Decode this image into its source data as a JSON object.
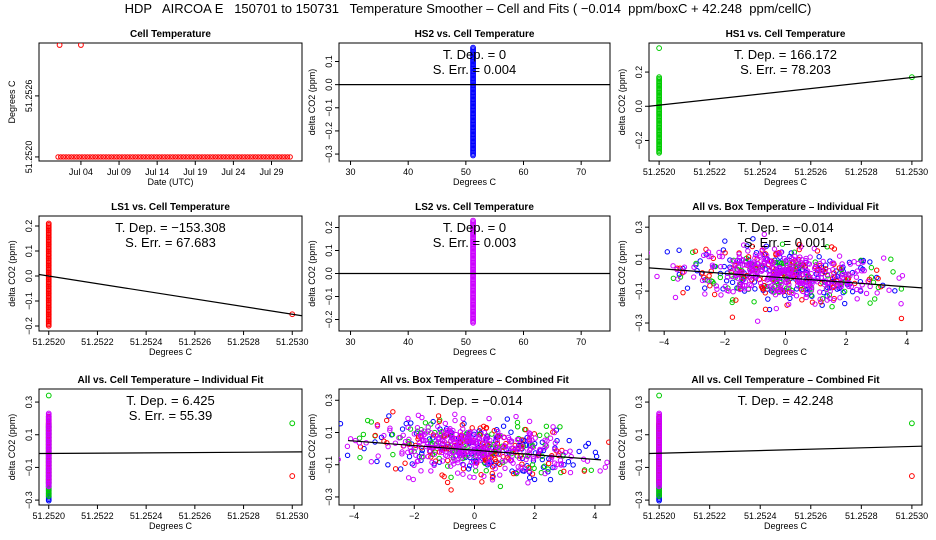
{
  "main_title": "HDP   AIRCOA E   150701 to 150731   Temperature Smoother – Cell and Fits ( −0.014  ppm/boxC + 42.248  ppm/cellC)",
  "chart_data": [
    {
      "type": "scatter",
      "title": "Cell Temperature",
      "xlabel": "Date (UTC)",
      "ylabel": "Degrees C",
      "xlim": [
        -2.5,
        32
      ],
      "ylim": [
        51.25196,
        51.25312
      ],
      "xticks": [
        {
          "v": 3,
          "label": "Jul 04"
        },
        {
          "v": 8,
          "label": "Jul 09"
        },
        {
          "v": 13,
          "label": "Jul 14"
        },
        {
          "v": 18,
          "label": "Jul 19"
        },
        {
          "v": 23,
          "label": "Jul 24"
        },
        {
          "v": 28,
          "label": "Jul 29"
        }
      ],
      "yticks": [
        {
          "v": 51.252,
          "label": "51.2520"
        },
        {
          "v": 51.2526,
          "label": "51.2526"
        }
      ],
      "series": [
        {
          "name": "cell",
          "color": "#ff0000",
          "markers": "circle",
          "x_start": 0,
          "x_end": 30.5,
          "x_step": 0.35,
          "y_base": 51.252,
          "extra_points": [
            [
              0.2,
              51.2531
            ],
            [
              3,
              51.2531
            ]
          ]
        }
      ]
    },
    {
      "type": "scatter",
      "title": "HS2 vs. Cell Temperature",
      "xlabel": "Degrees C",
      "ylabel": "delta CO2 (ppm)",
      "xlim": [
        28,
        75
      ],
      "ylim": [
        -0.33,
        0.18
      ],
      "xticks": [
        {
          "v": 30,
          "label": "30"
        },
        {
          "v": 40,
          "label": "40"
        },
        {
          "v": 50,
          "label": "50"
        },
        {
          "v": 60,
          "label": "60"
        },
        {
          "v": 70,
          "label": "70"
        }
      ],
      "yticks": [
        {
          "v": -0.3,
          "label": "−0.3"
        },
        {
          "v": -0.2,
          "label": "−0.2"
        },
        {
          "v": -0.1,
          "label": "−0.1"
        },
        {
          "v": 0,
          "label": "0.0"
        },
        {
          "v": 0.1,
          "label": "0.1"
        }
      ],
      "fit": {
        "x0": 28,
        "y0": 0,
        "x1": 75,
        "y1": 0
      },
      "annotations": [
        "T. Dep. = 0",
        "S. Err. = 0.004"
      ],
      "series": [
        {
          "name": "HS2",
          "color": "#0000ff",
          "markers": "column",
          "x": 51.25,
          "y_min": -0.31,
          "y_max": 0.16
        }
      ]
    },
    {
      "type": "scatter",
      "title": "HS1 vs. Cell Temperature",
      "xlabel": "Degrees C",
      "ylabel": "delta CO2 (ppm)",
      "xlim": [
        51.25196,
        51.25304
      ],
      "ylim": [
        -0.32,
        0.37
      ],
      "xticks": [
        {
          "v": 51.252,
          "label": "51.2520"
        },
        {
          "v": 51.2522,
          "label": "51.2522"
        },
        {
          "v": 51.2524,
          "label": "51.2524"
        },
        {
          "v": 51.2526,
          "label": "51.2526"
        },
        {
          "v": 51.2528,
          "label": "51.2528"
        },
        {
          "v": 51.253,
          "label": "51.2530"
        }
      ],
      "yticks": [
        {
          "v": -0.2,
          "label": "−0.2"
        },
        {
          "v": 0,
          "label": "0.0"
        },
        {
          "v": 0.2,
          "label": "0.2"
        }
      ],
      "fit": {
        "x0": 51.25196,
        "y0": 0.0,
        "x1": 51.25304,
        "y1": 0.175
      },
      "annotations": [
        "T. Dep. = 166.172",
        "S. Err. = 78.203"
      ],
      "series": [
        {
          "name": "HS1",
          "color": "#00cc00",
          "markers": "column",
          "x": 51.252,
          "y_min": -0.28,
          "y_max": 0.17,
          "extra_points": [
            [
              51.252,
              0.34
            ],
            [
              51.253,
              0.17
            ]
          ]
        }
      ]
    },
    {
      "type": "scatter",
      "title": "LS1 vs. Cell Temperature",
      "xlabel": "Degrees C",
      "ylabel": "delta CO2 (ppm)",
      "xlim": [
        51.25196,
        51.25304
      ],
      "ylim": [
        -0.22,
        0.24
      ],
      "xticks": [
        {
          "v": 51.252,
          "label": "51.2520"
        },
        {
          "v": 51.2522,
          "label": "51.2522"
        },
        {
          "v": 51.2524,
          "label": "51.2524"
        },
        {
          "v": 51.2526,
          "label": "51.2526"
        },
        {
          "v": 51.2528,
          "label": "51.2528"
        },
        {
          "v": 51.253,
          "label": "51.2530"
        }
      ],
      "yticks": [
        {
          "v": -0.2,
          "label": "−0.2"
        },
        {
          "v": -0.1,
          "label": "−0.1"
        },
        {
          "v": 0,
          "label": "0.0"
        },
        {
          "v": 0.1,
          "label": "0.1"
        },
        {
          "v": 0.2,
          "label": "0.2"
        }
      ],
      "fit": {
        "x0": 51.25196,
        "y0": 0.006,
        "x1": 51.25304,
        "y1": -0.159
      },
      "annotations": [
        "T. Dep. = −153.308",
        "S. Err. = 67.683"
      ],
      "series": [
        {
          "name": "LS1",
          "color": "#ff0000",
          "markers": "column",
          "x": 51.252,
          "y_min": -0.2,
          "y_max": 0.21,
          "extra_points": [
            [
              51.253,
              -0.153
            ]
          ]
        }
      ]
    },
    {
      "type": "scatter",
      "title": "LS2 vs. Cell Temperature",
      "xlabel": "Degrees C",
      "ylabel": "delta CO2 (ppm)",
      "xlim": [
        28,
        75
      ],
      "ylim": [
        -0.25,
        0.25
      ],
      "xticks": [
        {
          "v": 30,
          "label": "30"
        },
        {
          "v": 40,
          "label": "40"
        },
        {
          "v": 50,
          "label": "50"
        },
        {
          "v": 60,
          "label": "60"
        },
        {
          "v": 70,
          "label": "70"
        }
      ],
      "yticks": [
        {
          "v": -0.2,
          "label": "−0.2"
        },
        {
          "v": -0.1,
          "label": "−0.1"
        },
        {
          "v": 0,
          "label": "0.0"
        },
        {
          "v": 0.1,
          "label": "0.1"
        },
        {
          "v": 0.2,
          "label": "0.2"
        }
      ],
      "fit": {
        "x0": 28,
        "y0": 0,
        "x1": 75,
        "y1": 0
      },
      "annotations": [
        "T. Dep. = 0",
        "S. Err. = 0.003"
      ],
      "series": [
        {
          "name": "LS2",
          "color": "#cc00ff",
          "markers": "column",
          "x": 51.25,
          "y_min": -0.22,
          "y_max": 0.23
        }
      ]
    },
    {
      "type": "scatter",
      "title": "All vs. Box Temperature – Individual Fit",
      "xlabel": "Degrees C",
      "ylabel": "delta CO2 (ppm)",
      "xlim": [
        -4.5,
        4.5
      ],
      "ylim": [
        -0.35,
        0.37
      ],
      "xticks": [
        {
          "v": -4,
          "label": "−4"
        },
        {
          "v": -2,
          "label": "−2"
        },
        {
          "v": 0,
          "label": "0"
        },
        {
          "v": 2,
          "label": "2"
        },
        {
          "v": 4,
          "label": "4"
        }
      ],
      "yticks": [
        {
          "v": -0.3,
          "label": "−0.3"
        },
        {
          "v": -0.1,
          "label": "−0.1"
        },
        {
          "v": 0.1,
          "label": "0.1"
        },
        {
          "v": 0.3,
          "label": "0.3"
        }
      ],
      "fit": {
        "x0": -4.5,
        "y0": 0.045,
        "x1": 4.5,
        "y1": -0.08
      },
      "annotations": [
        "T. Dep. = −0.014",
        "S. Err. = 0.001"
      ],
      "series": [
        {
          "name": "HS2",
          "color": "#0000ff",
          "markers": "cloud",
          "n": 140,
          "x_spread": 1.7,
          "y_spread": 0.085,
          "slope": -0.014
        },
        {
          "name": "HS1",
          "color": "#00cc00",
          "markers": "cloud",
          "n": 110,
          "x_spread": 1.7,
          "y_spread": 0.085,
          "slope": -0.014
        },
        {
          "name": "LS1",
          "color": "#ff0000",
          "markers": "cloud",
          "n": 110,
          "x_spread": 1.7,
          "y_spread": 0.085,
          "slope": -0.014
        },
        {
          "name": "LS2",
          "color": "#cc00ff",
          "markers": "cloud",
          "n": 320,
          "x_spread": 1.6,
          "y_spread": 0.075,
          "slope": -0.014
        }
      ]
    },
    {
      "type": "scatter",
      "title": "All vs. Cell Temperature – Individual Fit",
      "xlabel": "Degrees C",
      "ylabel": "delta CO2 (ppm)",
      "xlim": [
        51.25196,
        51.25304
      ],
      "ylim": [
        -0.33,
        0.38
      ],
      "xticks": [
        {
          "v": 51.252,
          "label": "51.2520"
        },
        {
          "v": 51.2522,
          "label": "51.2522"
        },
        {
          "v": 51.2524,
          "label": "51.2524"
        },
        {
          "v": 51.2526,
          "label": "51.2526"
        },
        {
          "v": 51.2528,
          "label": "51.2528"
        },
        {
          "v": 51.253,
          "label": "51.2530"
        }
      ],
      "yticks": [
        {
          "v": -0.3,
          "label": "−0.3"
        },
        {
          "v": -0.1,
          "label": "−0.1"
        },
        {
          "v": 0.1,
          "label": "0.1"
        },
        {
          "v": 0.3,
          "label": "0.3"
        }
      ],
      "fit": {
        "x0": 51.25196,
        "y0": -0.015,
        "x1": 51.25304,
        "y1": -0.005
      },
      "annotations": [
        "T. Dep. = 6.425",
        "S. Err. = 55.39"
      ],
      "series": [
        {
          "name": "col-blue",
          "color": "#0000ff",
          "markers": "column",
          "x": 51.252,
          "y_min": -0.31,
          "y_max": 0.16
        },
        {
          "name": "col-green",
          "color": "#00cc00",
          "markers": "column",
          "x": 51.252,
          "y_min": -0.28,
          "y_max": 0.17,
          "extra_points": [
            [
              51.252,
              0.34
            ],
            [
              51.253,
              0.17
            ]
          ]
        },
        {
          "name": "col-red",
          "color": "#ff0000",
          "markers": "column",
          "x": 51.252,
          "y_min": -0.2,
          "y_max": 0.21,
          "extra_points": [
            [
              51.253,
              -0.153
            ]
          ]
        },
        {
          "name": "col-purple",
          "color": "#cc00ff",
          "markers": "column",
          "x": 51.252,
          "y_min": -0.22,
          "y_max": 0.23
        }
      ]
    },
    {
      "type": "scatter",
      "title": "All vs. Box Temperature – Combined Fit",
      "xlabel": "Degrees C",
      "ylabel": "delta CO2 (ppm)",
      "xlim": [
        -4.5,
        4.5
      ],
      "ylim": [
        -0.35,
        0.37
      ],
      "xticks": [
        {
          "v": -4,
          "label": "−4"
        },
        {
          "v": -2,
          "label": "−2"
        },
        {
          "v": 0,
          "label": "0"
        },
        {
          "v": 2,
          "label": "2"
        },
        {
          "v": 4,
          "label": "4"
        }
      ],
      "yticks": [
        {
          "v": -0.3,
          "label": "−0.3"
        },
        {
          "v": -0.1,
          "label": "−0.1"
        },
        {
          "v": 0.1,
          "label": "0.1"
        },
        {
          "v": 0.3,
          "label": "0.3"
        }
      ],
      "fit": {
        "x0": -4.2,
        "y0": 0.05,
        "x1": 4.2,
        "y1": -0.07
      },
      "annotations": [
        "T. Dep. = −0.014"
      ],
      "series": [
        {
          "name": "HS2",
          "color": "#0000ff",
          "markers": "cloud",
          "n": 140,
          "x_spread": 1.7,
          "y_spread": 0.085,
          "slope": -0.014
        },
        {
          "name": "HS1",
          "color": "#00cc00",
          "markers": "cloud",
          "n": 110,
          "x_spread": 1.7,
          "y_spread": 0.085,
          "slope": -0.014
        },
        {
          "name": "LS1",
          "color": "#ff0000",
          "markers": "cloud",
          "n": 110,
          "x_spread": 1.7,
          "y_spread": 0.085,
          "slope": -0.014
        },
        {
          "name": "LS2",
          "color": "#cc00ff",
          "markers": "cloud",
          "n": 320,
          "x_spread": 1.6,
          "y_spread": 0.075,
          "slope": -0.014
        }
      ]
    },
    {
      "type": "scatter",
      "title": "All vs. Cell Temperature – Combined Fit",
      "xlabel": "Degrees C",
      "ylabel": "delta CO2 (ppm)",
      "xlim": [
        51.25196,
        51.25304
      ],
      "ylim": [
        -0.33,
        0.38
      ],
      "xticks": [
        {
          "v": 51.252,
          "label": "51.2520"
        },
        {
          "v": 51.2522,
          "label": "51.2522"
        },
        {
          "v": 51.2524,
          "label": "51.2524"
        },
        {
          "v": 51.2526,
          "label": "51.2526"
        },
        {
          "v": 51.2528,
          "label": "51.2528"
        },
        {
          "v": 51.253,
          "label": "51.2530"
        }
      ],
      "yticks": [
        {
          "v": -0.3,
          "label": "−0.3"
        },
        {
          "v": -0.1,
          "label": "−0.1"
        },
        {
          "v": 0.1,
          "label": "0.1"
        },
        {
          "v": 0.3,
          "label": "0.3"
        }
      ],
      "fit": {
        "x0": 51.25196,
        "y0": -0.015,
        "x1": 51.25304,
        "y1": 0.03
      },
      "annotations": [
        "T. Dep. = 42.248"
      ],
      "series": [
        {
          "name": "col-blue",
          "color": "#0000ff",
          "markers": "column",
          "x": 51.252,
          "y_min": -0.31,
          "y_max": 0.16
        },
        {
          "name": "col-green",
          "color": "#00cc00",
          "markers": "column",
          "x": 51.252,
          "y_min": -0.28,
          "y_max": 0.17,
          "extra_points": [
            [
              51.252,
              0.34
            ],
            [
              51.253,
              0.17
            ]
          ]
        },
        {
          "name": "col-red",
          "color": "#ff0000",
          "markers": "column",
          "x": 51.252,
          "y_min": -0.2,
          "y_max": 0.21,
          "extra_points": [
            [
              51.253,
              -0.153
            ]
          ]
        },
        {
          "name": "col-purple",
          "color": "#cc00ff",
          "markers": "column",
          "x": 51.252,
          "y_min": -0.22,
          "y_max": 0.23
        }
      ]
    }
  ]
}
